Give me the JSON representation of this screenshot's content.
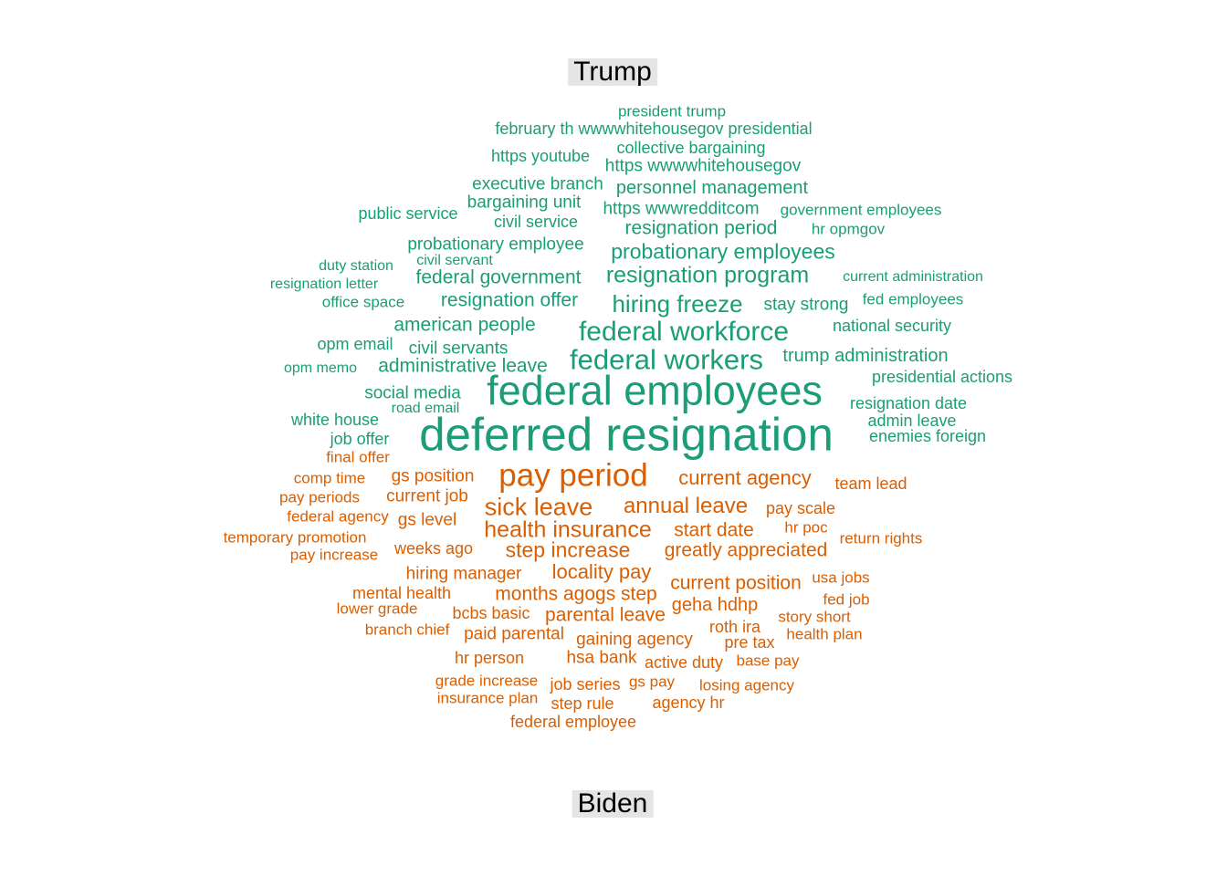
{
  "chart_data": {
    "type": "comparison_wordcloud",
    "groups": [
      {
        "name": "Trump",
        "color": "#1B9E77"
      },
      {
        "name": "Biden",
        "color": "#D95F02"
      }
    ],
    "words": [
      {
        "text": "president trump",
        "group": "Trump",
        "weight": 17
      },
      {
        "text": "february th wwwwhitehousegov presidential",
        "group": "Trump",
        "weight": 18
      },
      {
        "text": "collective bargaining",
        "group": "Trump",
        "weight": 18
      },
      {
        "text": "https youtube",
        "group": "Trump",
        "weight": 18
      },
      {
        "text": "https wwwwhitehousegov",
        "group": "Trump",
        "weight": 19
      },
      {
        "text": "executive branch",
        "group": "Trump",
        "weight": 19
      },
      {
        "text": "personnel management",
        "group": "Trump",
        "weight": 20
      },
      {
        "text": "bargaining unit",
        "group": "Trump",
        "weight": 19
      },
      {
        "text": "public service",
        "group": "Trump",
        "weight": 18
      },
      {
        "text": "https wwwredditcom",
        "group": "Trump",
        "weight": 19
      },
      {
        "text": "government employees",
        "group": "Trump",
        "weight": 17
      },
      {
        "text": "civil service",
        "group": "Trump",
        "weight": 18
      },
      {
        "text": "resignation period",
        "group": "Trump",
        "weight": 21
      },
      {
        "text": "hr opmgov",
        "group": "Trump",
        "weight": 17
      },
      {
        "text": "probationary employee",
        "group": "Trump",
        "weight": 19
      },
      {
        "text": "probationary employees",
        "group": "Trump",
        "weight": 23
      },
      {
        "text": "duty station",
        "group": "Trump",
        "weight": 16
      },
      {
        "text": "civil servant",
        "group": "Trump",
        "weight": 16
      },
      {
        "text": "federal government",
        "group": "Trump",
        "weight": 21
      },
      {
        "text": "resignation program",
        "group": "Trump",
        "weight": 25
      },
      {
        "text": "current administration",
        "group": "Trump",
        "weight": 16
      },
      {
        "text": "resignation letter",
        "group": "Trump",
        "weight": 16
      },
      {
        "text": "office space",
        "group": "Trump",
        "weight": 17
      },
      {
        "text": "resignation offer",
        "group": "Trump",
        "weight": 21
      },
      {
        "text": "hiring freeze",
        "group": "Trump",
        "weight": 26
      },
      {
        "text": "stay strong",
        "group": "Trump",
        "weight": 19
      },
      {
        "text": "fed employees",
        "group": "Trump",
        "weight": 17
      },
      {
        "text": "american people",
        "group": "Trump",
        "weight": 21
      },
      {
        "text": "federal workforce",
        "group": "Trump",
        "weight": 30
      },
      {
        "text": "national security",
        "group": "Trump",
        "weight": 18
      },
      {
        "text": "opm email",
        "group": "Trump",
        "weight": 18
      },
      {
        "text": "civil servants",
        "group": "Trump",
        "weight": 19
      },
      {
        "text": "federal workers",
        "group": "Trump",
        "weight": 31
      },
      {
        "text": "trump administration",
        "group": "Trump",
        "weight": 20
      },
      {
        "text": "opm memo",
        "group": "Trump",
        "weight": 16
      },
      {
        "text": "administrative leave",
        "group": "Trump",
        "weight": 21
      },
      {
        "text": "presidential actions",
        "group": "Trump",
        "weight": 18
      },
      {
        "text": "social media",
        "group": "Trump",
        "weight": 19
      },
      {
        "text": "federal employees",
        "group": "Trump",
        "weight": 45
      },
      {
        "text": "road email",
        "group": "Trump",
        "weight": 16
      },
      {
        "text": "resignation date",
        "group": "Trump",
        "weight": 18
      },
      {
        "text": "white house",
        "group": "Trump",
        "weight": 18
      },
      {
        "text": "deferred resignation",
        "group": "Trump",
        "weight": 51
      },
      {
        "text": "admin leave",
        "group": "Trump",
        "weight": 18
      },
      {
        "text": "job offer",
        "group": "Trump",
        "weight": 18
      },
      {
        "text": "enemies foreign",
        "group": "Trump",
        "weight": 18
      },
      {
        "text": "final offer",
        "group": "Biden",
        "weight": 17
      },
      {
        "text": "comp time",
        "group": "Biden",
        "weight": 17
      },
      {
        "text": "gs position",
        "group": "Biden",
        "weight": 19
      },
      {
        "text": "pay period",
        "group": "Biden",
        "weight": 35
      },
      {
        "text": "current agency",
        "group": "Biden",
        "weight": 22
      },
      {
        "text": "team lead",
        "group": "Biden",
        "weight": 18
      },
      {
        "text": "pay periods",
        "group": "Biden",
        "weight": 17
      },
      {
        "text": "current job",
        "group": "Biden",
        "weight": 19
      },
      {
        "text": "sick leave",
        "group": "Biden",
        "weight": 27
      },
      {
        "text": "annual leave",
        "group": "Biden",
        "weight": 24
      },
      {
        "text": "pay scale",
        "group": "Biden",
        "weight": 18
      },
      {
        "text": "federal agency",
        "group": "Biden",
        "weight": 17
      },
      {
        "text": "gs level",
        "group": "Biden",
        "weight": 19
      },
      {
        "text": "health insurance",
        "group": "Biden",
        "weight": 25
      },
      {
        "text": "start date",
        "group": "Biden",
        "weight": 21
      },
      {
        "text": "hr poc",
        "group": "Biden",
        "weight": 17
      },
      {
        "text": "temporary promotion",
        "group": "Biden",
        "weight": 17
      },
      {
        "text": "return rights",
        "group": "Biden",
        "weight": 17
      },
      {
        "text": "pay increase",
        "group": "Biden",
        "weight": 17
      },
      {
        "text": "weeks ago",
        "group": "Biden",
        "weight": 18
      },
      {
        "text": "step increase",
        "group": "Biden",
        "weight": 23
      },
      {
        "text": "greatly appreciated",
        "group": "Biden",
        "weight": 21
      },
      {
        "text": "hiring manager",
        "group": "Biden",
        "weight": 19
      },
      {
        "text": "locality pay",
        "group": "Biden",
        "weight": 22
      },
      {
        "text": "current position",
        "group": "Biden",
        "weight": 21
      },
      {
        "text": "usa jobs",
        "group": "Biden",
        "weight": 17
      },
      {
        "text": "mental health",
        "group": "Biden",
        "weight": 18
      },
      {
        "text": "months agogs step",
        "group": "Biden",
        "weight": 21
      },
      {
        "text": "fed job",
        "group": "Biden",
        "weight": 17
      },
      {
        "text": "lower grade",
        "group": "Biden",
        "weight": 17
      },
      {
        "text": "bcbs basic",
        "group": "Biden",
        "weight": 18
      },
      {
        "text": "parental leave",
        "group": "Biden",
        "weight": 21
      },
      {
        "text": "geha hdhp",
        "group": "Biden",
        "weight": 20
      },
      {
        "text": "story short",
        "group": "Biden",
        "weight": 17
      },
      {
        "text": "roth ira",
        "group": "Biden",
        "weight": 18
      },
      {
        "text": "branch chief",
        "group": "Biden",
        "weight": 17
      },
      {
        "text": "paid parental",
        "group": "Biden",
        "weight": 19
      },
      {
        "text": "gaining agency",
        "group": "Biden",
        "weight": 19
      },
      {
        "text": "health plan",
        "group": "Biden",
        "weight": 17
      },
      {
        "text": "pre tax",
        "group": "Biden",
        "weight": 18
      },
      {
        "text": "hr person",
        "group": "Biden",
        "weight": 18
      },
      {
        "text": "hsa bank",
        "group": "Biden",
        "weight": 19
      },
      {
        "text": "active duty",
        "group": "Biden",
        "weight": 18
      },
      {
        "text": "base pay",
        "group": "Biden",
        "weight": 17
      },
      {
        "text": "grade increase",
        "group": "Biden",
        "weight": 17
      },
      {
        "text": "job series",
        "group": "Biden",
        "weight": 18
      },
      {
        "text": "gs pay",
        "group": "Biden",
        "weight": 17
      },
      {
        "text": "losing agency",
        "group": "Biden",
        "weight": 17
      },
      {
        "text": "insurance plan",
        "group": "Biden",
        "weight": 17
      },
      {
        "text": "step rule",
        "group": "Biden",
        "weight": 18
      },
      {
        "text": "agency hr",
        "group": "Biden",
        "weight": 18
      },
      {
        "text": "federal employee",
        "group": "Biden",
        "weight": 18
      }
    ]
  }
}
